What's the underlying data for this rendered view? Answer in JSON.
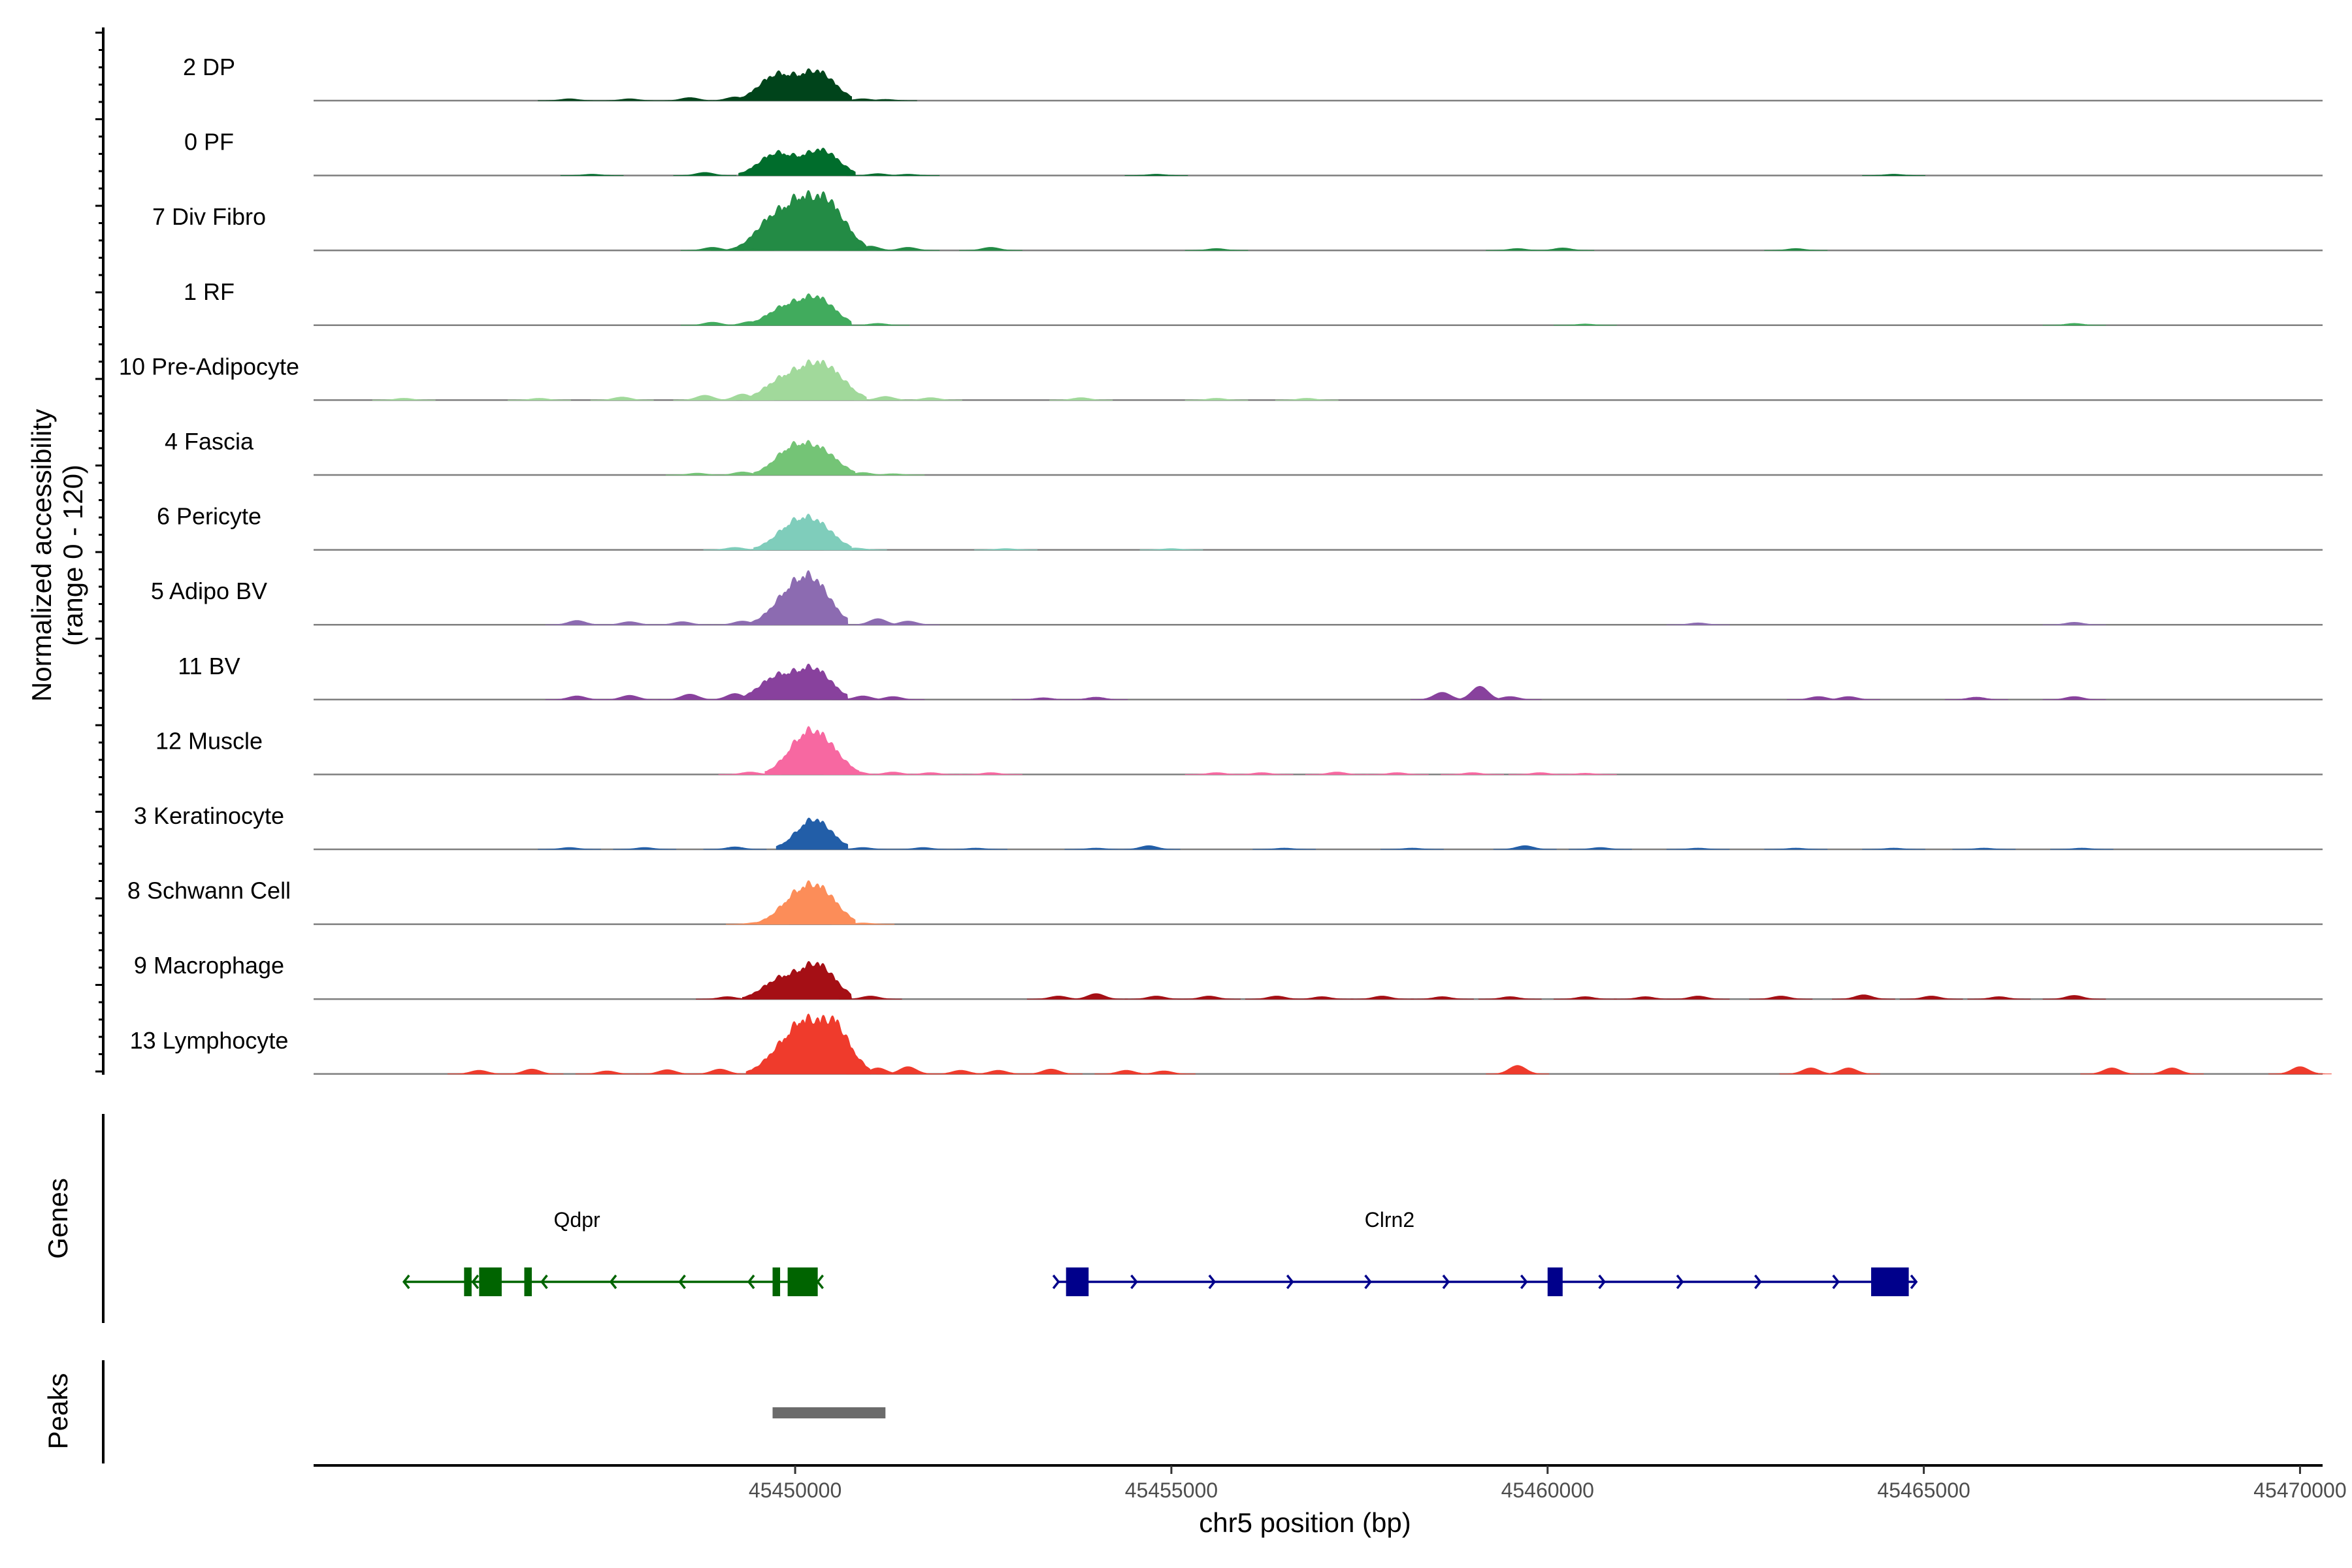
{
  "chart_data": {
    "type": "area",
    "title": "",
    "ylabel_line1": "Normalized accessibility",
    "ylabel_line2": "(range 0 - 120)",
    "ylim": [
      0,
      120
    ],
    "xlabel": "chr5 position (bp)",
    "xlim": [
      45443600,
      45470300
    ],
    "xticks": [
      45450000,
      45455000,
      45460000,
      45465000,
      45470000
    ],
    "xtick_labels": [
      "45450000",
      "45455000",
      "45460000",
      "45465000",
      "45470000"
    ],
    "genes_title": "Genes",
    "peaks_title": "Peaks",
    "tracks": [
      {
        "name": "2 DP",
        "color": "#00441b",
        "main": [
          [
            45449750,
            0.46
          ],
          [
            45450300,
            0.52
          ]
        ],
        "small": [
          [
            45447000,
            0.03
          ],
          [
            45447800,
            0.03
          ],
          [
            45448600,
            0.05
          ],
          [
            45449200,
            0.06
          ],
          [
            45450900,
            0.03
          ],
          [
            45451200,
            0.02
          ]
        ]
      },
      {
        "name": "0 PF",
        "color": "#006d2c",
        "main": [
          [
            45449750,
            0.4
          ],
          [
            45450350,
            0.46
          ]
        ],
        "small": [
          [
            45447300,
            0.02
          ],
          [
            45448800,
            0.05
          ],
          [
            45451100,
            0.03
          ],
          [
            45451500,
            0.02
          ],
          [
            45454800,
            0.02
          ],
          [
            45464600,
            0.02
          ]
        ]
      },
      {
        "name": "7 Div Fibro",
        "color": "#238b45",
        "main": [
          [
            45449700,
            0.55
          ],
          [
            45450150,
            0.82
          ],
          [
            45450500,
            0.6
          ]
        ],
        "small": [
          [
            45448900,
            0.05
          ],
          [
            45449300,
            0.07
          ],
          [
            45451000,
            0.07
          ],
          [
            45451500,
            0.05
          ],
          [
            45452600,
            0.05
          ],
          [
            45455600,
            0.03
          ],
          [
            45459600,
            0.03
          ],
          [
            45460200,
            0.04
          ],
          [
            45463300,
            0.03
          ]
        ]
      },
      {
        "name": "1 RF",
        "color": "#41ab5d",
        "main": [
          [
            45449850,
            0.3
          ],
          [
            45450300,
            0.48
          ]
        ],
        "small": [
          [
            45448900,
            0.05
          ],
          [
            45449400,
            0.06
          ],
          [
            45451100,
            0.03
          ],
          [
            45460500,
            0.02
          ],
          [
            45467000,
            0.03
          ]
        ]
      },
      {
        "name": "10 Pre-Adipocyte",
        "color": "#a1d99b",
        "main": [
          [
            45449800,
            0.32
          ],
          [
            45450200,
            0.45
          ],
          [
            45450500,
            0.38
          ]
        ],
        "small": [
          [
            45444800,
            0.03
          ],
          [
            45446600,
            0.03
          ],
          [
            45447700,
            0.05
          ],
          [
            45448800,
            0.08
          ],
          [
            45449300,
            0.1
          ],
          [
            45451200,
            0.06
          ],
          [
            45451800,
            0.04
          ],
          [
            45453800,
            0.04
          ],
          [
            45455600,
            0.03
          ],
          [
            45456800,
            0.03
          ]
        ]
      },
      {
        "name": "4 Fascia",
        "color": "#74c476",
        "main": [
          [
            45449950,
            0.45
          ],
          [
            45450350,
            0.4
          ]
        ],
        "small": [
          [
            45448700,
            0.03
          ],
          [
            45449300,
            0.05
          ],
          [
            45450900,
            0.04
          ],
          [
            45451300,
            0.02
          ]
        ]
      },
      {
        "name": "6 Pericyte",
        "color": "#7fcdbb",
        "main": [
          [
            45449950,
            0.38
          ],
          [
            45450300,
            0.42
          ]
        ],
        "small": [
          [
            45449200,
            0.04
          ],
          [
            45450800,
            0.03
          ],
          [
            45452800,
            0.02
          ],
          [
            45455000,
            0.02
          ]
        ]
      },
      {
        "name": "5 Adipo BV",
        "color": "#8c6bb1",
        "main": [
          [
            45449900,
            0.45
          ],
          [
            45450250,
            0.72
          ]
        ],
        "small": [
          [
            45447100,
            0.07
          ],
          [
            45447800,
            0.05
          ],
          [
            45448500,
            0.05
          ],
          [
            45449300,
            0.06
          ],
          [
            45451100,
            0.1
          ],
          [
            45451500,
            0.06
          ],
          [
            45462000,
            0.03
          ],
          [
            45467000,
            0.04
          ]
        ]
      },
      {
        "name": "11 BV",
        "color": "#88419d",
        "main": [
          [
            45449750,
            0.4
          ],
          [
            45450250,
            0.55
          ]
        ],
        "small": [
          [
            45447100,
            0.06
          ],
          [
            45447800,
            0.07
          ],
          [
            45448600,
            0.09
          ],
          [
            45449200,
            0.1
          ],
          [
            45450900,
            0.06
          ],
          [
            45451300,
            0.05
          ],
          [
            45453300,
            0.03
          ],
          [
            45454000,
            0.04
          ],
          [
            45458600,
            0.12
          ],
          [
            45459100,
            0.22
          ],
          [
            45459500,
            0.05
          ],
          [
            45463600,
            0.05
          ],
          [
            45464000,
            0.05
          ],
          [
            45465700,
            0.04
          ],
          [
            45467000,
            0.05
          ]
        ]
      },
      {
        "name": "12 Muscle",
        "color": "#f768a1",
        "main": [
          [
            45450100,
            0.55
          ],
          [
            45450400,
            0.45
          ]
        ],
        "small": [
          [
            45449400,
            0.04
          ],
          [
            45450800,
            0.05
          ],
          [
            45451300,
            0.04
          ],
          [
            45451800,
            0.03
          ],
          [
            45452600,
            0.03
          ],
          [
            45455600,
            0.03
          ],
          [
            45456200,
            0.03
          ],
          [
            45457200,
            0.04
          ],
          [
            45458000,
            0.03
          ],
          [
            45459000,
            0.03
          ],
          [
            45459900,
            0.03
          ],
          [
            45460500,
            0.02
          ]
        ]
      },
      {
        "name": "3 Keratinocyte",
        "color": "#225ea8",
        "main": [
          [
            45450250,
            0.55
          ]
        ],
        "small": [
          [
            45447000,
            0.03
          ],
          [
            45448000,
            0.03
          ],
          [
            45449200,
            0.04
          ],
          [
            45450900,
            0.03
          ],
          [
            45451700,
            0.03
          ],
          [
            45452400,
            0.02
          ],
          [
            45454000,
            0.02
          ],
          [
            45454700,
            0.06
          ],
          [
            45456500,
            0.02
          ],
          [
            45458200,
            0.02
          ],
          [
            45459700,
            0.06
          ],
          [
            45460700,
            0.03
          ],
          [
            45462000,
            0.02
          ],
          [
            45463300,
            0.02
          ],
          [
            45464600,
            0.02
          ],
          [
            45465800,
            0.02
          ],
          [
            45467100,
            0.02
          ]
        ]
      },
      {
        "name": "8 Schwann Cell",
        "color": "#fc8d59",
        "main": [
          [
            45450000,
            0.42
          ],
          [
            45450350,
            0.55
          ]
        ],
        "small": [
          [
            45449500,
            0.03
          ],
          [
            45450900,
            0.02
          ]
        ]
      },
      {
        "name": "9 Macrophage",
        "color": "#a50f15",
        "main": [
          [
            45449800,
            0.35
          ],
          [
            45450300,
            0.62
          ]
        ],
        "small": [
          [
            45449100,
            0.04
          ],
          [
            45451000,
            0.05
          ],
          [
            45453500,
            0.05
          ],
          [
            45454000,
            0.09
          ],
          [
            45454800,
            0.05
          ],
          [
            45455500,
            0.05
          ],
          [
            45456400,
            0.05
          ],
          [
            45457000,
            0.04
          ],
          [
            45457800,
            0.05
          ],
          [
            45458600,
            0.04
          ],
          [
            45459500,
            0.04
          ],
          [
            45460500,
            0.04
          ],
          [
            45461300,
            0.04
          ],
          [
            45462000,
            0.05
          ],
          [
            45463100,
            0.05
          ],
          [
            45464200,
            0.07
          ],
          [
            45465100,
            0.05
          ],
          [
            45466000,
            0.04
          ],
          [
            45467000,
            0.06
          ]
        ]
      },
      {
        "name": "13 Lymphocyte",
        "color": "#ef3b2c",
        "main": [
          [
            45449850,
            0.45
          ],
          [
            45450250,
            0.9
          ],
          [
            45450550,
            0.6
          ]
        ],
        "small": [
          [
            45445800,
            0.06
          ],
          [
            45446500,
            0.08
          ],
          [
            45447500,
            0.05
          ],
          [
            45448300,
            0.07
          ],
          [
            45449000,
            0.08
          ],
          [
            45451100,
            0.1
          ],
          [
            45451500,
            0.12
          ],
          [
            45452200,
            0.06
          ],
          [
            45452700,
            0.06
          ],
          [
            45453400,
            0.08
          ],
          [
            45454400,
            0.06
          ],
          [
            45454900,
            0.05
          ],
          [
            45459600,
            0.14
          ],
          [
            45463500,
            0.1
          ],
          [
            45464000,
            0.1
          ],
          [
            45467500,
            0.1
          ],
          [
            45468300,
            0.1
          ],
          [
            45470000,
            0.12
          ]
        ]
      }
    ],
    "genes": [
      {
        "name": "Qdpr",
        "color": "#006400",
        "start": 45444800,
        "end": 45450300,
        "strand": "-",
        "exons": [
          [
            45445600,
            45445700
          ],
          [
            45445800,
            45446100
          ],
          [
            45446400,
            45446500
          ],
          [
            45449700,
            45449800
          ],
          [
            45449900,
            45450300
          ]
        ],
        "label_x": 45447100
      },
      {
        "name": "Clrn2",
        "color": "#00008b",
        "start": 45453500,
        "end": 45464900,
        "strand": "+",
        "exons": [
          [
            45453600,
            45453900
          ],
          [
            45460000,
            45460200
          ],
          [
            45464300,
            45464800
          ]
        ],
        "label_x": 45457900
      }
    ],
    "peaks": [
      [
        45449700,
        45451200
      ]
    ],
    "peak_color": "#6b6b6b"
  }
}
